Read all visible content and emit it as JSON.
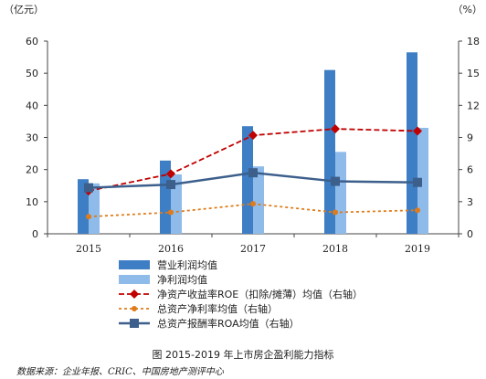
{
  "chart_data": {
    "type": "bar",
    "categories": [
      "2015",
      "2016",
      "2017",
      "2018",
      "2019"
    ],
    "title": "图 2015-2019 年上市房企盈利能力指标",
    "left_axis": {
      "label": "（亿元）",
      "min": 0,
      "max": 60,
      "ticks": [
        "0",
        "10",
        "20",
        "30",
        "40",
        "50",
        "60"
      ]
    },
    "right_axis": {
      "label": "（%）",
      "min": 0,
      "max": 18,
      "ticks": [
        "0",
        "3",
        "6",
        "9",
        "12",
        "15",
        "18"
      ]
    },
    "grid": false,
    "legend_position": "bottom",
    "series": [
      {
        "name": "营业利润均值",
        "kind": "bar",
        "axis": "left",
        "color": "#3d7ec4",
        "values": [
          17,
          22.8,
          33.5,
          51,
          56.5
        ]
      },
      {
        "name": "净利润均值",
        "kind": "bar",
        "axis": "left",
        "color": "#8fbbea",
        "values": [
          15.7,
          18.5,
          21,
          25.5,
          33
        ]
      },
      {
        "name": "净资产收益率ROE（扣除/摊薄）均值（右轴）",
        "kind": "line",
        "axis": "right",
        "color": "#c00000",
        "style": "dashed-arrow",
        "values": [
          4.0,
          5.6,
          9.2,
          9.8,
          9.6
        ]
      },
      {
        "name": "总资产净利率均值（右轴）",
        "kind": "line",
        "axis": "right",
        "color": "#e07b1a",
        "style": "dotted-circle",
        "values": [
          1.6,
          2.0,
          2.8,
          2.0,
          2.2
        ]
      },
      {
        "name": "总资产报酬率ROA均值（右轴）",
        "kind": "line",
        "axis": "right",
        "color": "#3c5f8c",
        "style": "solid-square",
        "values": [
          4.3,
          4.6,
          5.7,
          4.9,
          4.8
        ]
      }
    ],
    "source": "数据来源：企业年报、CRIC、中国房地产测评中心"
  }
}
